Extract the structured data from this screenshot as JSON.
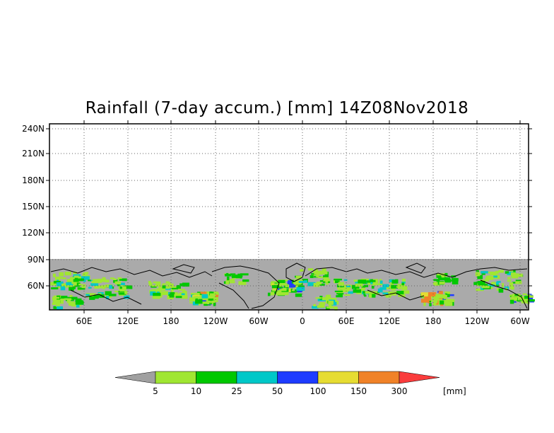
{
  "title": "Rainfall (7-day accum.) [mm] 14Z08Nov2018",
  "map": {
    "lat_labels": [
      "240N",
      "210N",
      "180N",
      "150N",
      "120N",
      "90N",
      "60N"
    ],
    "lon_labels": [
      "60E",
      "120E",
      "180",
      "120W",
      "60W",
      "0",
      "60E",
      "120E",
      "180",
      "120W",
      "60W"
    ],
    "nodata_color": "#aaaaaa",
    "land_outline_color": "#000000"
  },
  "colorbar": {
    "unit": "[mm]",
    "below_color": "#a0a0a0",
    "colors": [
      "#a0e632",
      "#00c800",
      "#00c8c8",
      "#1e3cff",
      "#e6dc32",
      "#f08228",
      "#fa3c3c"
    ],
    "labels": [
      "5",
      "10",
      "25",
      "50",
      "100",
      "150",
      "300"
    ]
  }
}
